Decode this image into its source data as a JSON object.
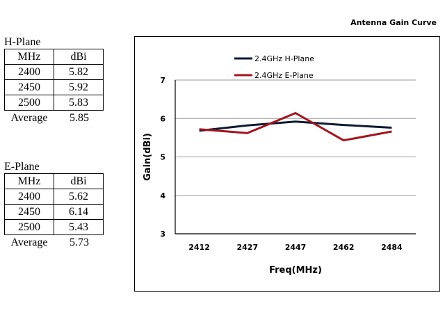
{
  "page_title": "Antenna Gain Curve",
  "h_plane": {
    "heading": "H-Plane",
    "columns": [
      "MHz",
      "dBi"
    ],
    "rows": [
      [
        "2400",
        "5.82"
      ],
      [
        "2450",
        "5.92"
      ],
      [
        "2500",
        "5.83"
      ]
    ],
    "average_label": "Average",
    "average_value": "5.85"
  },
  "e_plane": {
    "heading": "E-Plane",
    "columns": [
      "MHz",
      "dBi"
    ],
    "rows": [
      [
        "2400",
        "5.62"
      ],
      [
        "2450",
        "6.14"
      ],
      [
        "2500",
        "5.43"
      ]
    ],
    "average_label": "Average",
    "average_value": "5.73"
  },
  "chart_data": {
    "type": "line",
    "title": "",
    "xlabel": "Freq(MHz)",
    "ylabel": "Gain(dBi)",
    "categories": [
      "2412",
      "2427",
      "2447",
      "2462",
      "2484"
    ],
    "ylim": [
      3,
      7
    ],
    "yticks": [
      3,
      4,
      5,
      6,
      7
    ],
    "grid": true,
    "legend_position": "top-left",
    "series": [
      {
        "name": "2.4GHz H-Plane",
        "color": "#0d1b33",
        "values": [
          5.68,
          5.82,
          5.92,
          5.83,
          5.76
        ]
      },
      {
        "name": "2.4GHz E-Plane",
        "color": "#a3141e",
        "values": [
          5.72,
          5.62,
          6.14,
          5.43,
          5.66
        ]
      }
    ]
  }
}
